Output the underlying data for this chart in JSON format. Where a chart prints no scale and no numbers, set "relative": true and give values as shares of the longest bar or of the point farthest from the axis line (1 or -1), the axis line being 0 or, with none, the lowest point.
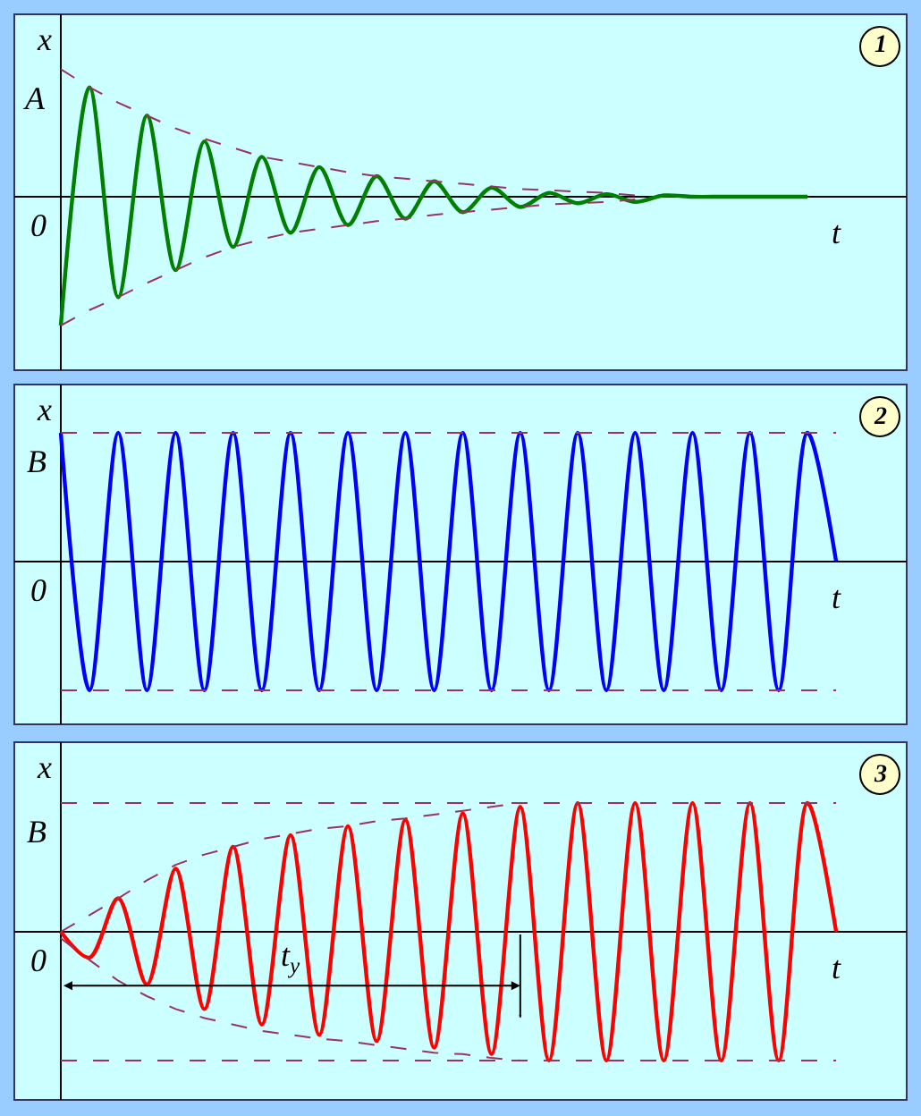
{
  "chart_data": [
    {
      "type": "line",
      "relative": true,
      "xlabel": "t",
      "ylabel": "x",
      "categories": [
        null,
        null,
        null,
        null,
        null,
        null,
        null,
        null,
        null,
        null,
        null,
        null,
        null,
        null,
        null,
        null,
        null,
        null,
        null,
        null,
        null,
        null,
        null,
        null,
        null,
        null,
        null,
        null
      ],
      "annotations": [
        "0",
        "A",
        "1"
      ],
      "series": [
        {
          "color": "#008000",
          "values": [
            -1.0,
            0.85,
            -0.78,
            0.63,
            -0.57,
            0.43,
            -0.39,
            0.31,
            -0.28,
            0.23,
            -0.22,
            0.16,
            -0.17,
            0.12,
            -0.12,
            0.07,
            -0.08,
            0.03,
            -0.05,
            0.02,
            -0.04,
            0.01,
            0,
            0,
            0,
            0,
            0,
            null
          ]
        },
        {
          "color": "#993366",
          "line_style": "dashed",
          "values": [
            0.99,
            0.85,
            0.73,
            0.63,
            0.53,
            0.45,
            0.38,
            0.31,
            0.27,
            0.23,
            0.19,
            0.16,
            0.14,
            0.12,
            0.1,
            0.08,
            0.06,
            0.05,
            0.04,
            0.03,
            0.01,
            null,
            null,
            null,
            null,
            null,
            null,
            null
          ]
        },
        {
          "color": "#993366",
          "line_style": "dashed",
          "values": [
            -1.0,
            -0.88,
            -0.78,
            -0.67,
            -0.57,
            -0.47,
            -0.39,
            -0.33,
            -0.28,
            -0.25,
            -0.22,
            -0.19,
            -0.17,
            -0.14,
            -0.12,
            -0.1,
            -0.08,
            -0.06,
            -0.05,
            -0.04,
            -0.02,
            null,
            null,
            null,
            null,
            null,
            null,
            null
          ]
        }
      ]
    },
    {
      "type": "line",
      "relative": true,
      "xlabel": "t",
      "ylabel": "x",
      "categories": [
        null,
        null,
        null,
        null,
        null,
        null,
        null,
        null,
        null,
        null,
        null,
        null,
        null,
        null,
        null,
        null,
        null,
        null,
        null,
        null,
        null,
        null,
        null,
        null,
        null,
        null,
        null,
        null
      ],
      "annotations": [
        "0",
        "2"
      ],
      "ref_lines": [
        {
          "axis": "y",
          "value": 1,
          "label": "B",
          "color": "#993366",
          "line_style": "dashed"
        },
        {
          "axis": "y",
          "value": -1,
          "color": "#993366",
          "line_style": "dashed"
        }
      ],
      "series": [
        {
          "color": "#0000ff",
          "values": [
            1,
            -1,
            1,
            -1,
            1,
            -1,
            1,
            -1,
            1,
            -1,
            1,
            -1,
            1,
            -1,
            1,
            -1,
            1,
            -1,
            1,
            -1,
            1,
            -1,
            1,
            -1,
            1,
            -1,
            1,
            0
          ]
        }
      ]
    },
    {
      "type": "line",
      "relative": true,
      "xlabel": "t",
      "ylabel": "x",
      "categories": [
        null,
        null,
        null,
        null,
        null,
        null,
        null,
        null,
        null,
        null,
        null,
        null,
        null,
        null,
        null,
        null,
        null,
        null,
        null,
        null,
        null,
        null,
        null,
        null,
        null,
        null,
        null,
        null
      ],
      "annotations": [
        "0",
        "t$_{y}$",
        "3"
      ],
      "ref_lines": [
        {
          "axis": "y",
          "value": 1,
          "label": "B",
          "color": "#993366",
          "line_style": "dashed"
        },
        {
          "axis": "y",
          "value": -1,
          "color": "#993366",
          "line_style": "dashed"
        }
      ],
      "series": [
        {
          "color": "#ff0000",
          "values": [
            0,
            -0.2,
            0.26,
            -0.41,
            0.49,
            -0.6,
            0.66,
            -0.72,
            0.75,
            -0.8,
            0.82,
            -0.85,
            0.87,
            -0.9,
            0.92,
            -0.95,
            0.97,
            -1,
            1,
            -1,
            1,
            -1,
            1,
            -1,
            1,
            -1,
            1,
            0
          ]
        },
        {
          "color": "#993366",
          "line_style": "dashed",
          "values": [
            0,
            0.13,
            0.26,
            0.4,
            0.52,
            0.6,
            0.66,
            0.72,
            0.76,
            0.8,
            0.82,
            0.86,
            0.88,
            0.91,
            0.94,
            0.97,
            1,
            null,
            null,
            null,
            null,
            null,
            null,
            null,
            null,
            null,
            null,
            null
          ]
        },
        {
          "color": "#993366",
          "line_style": "dashed",
          "values": [
            -0.05,
            -0.22,
            -0.38,
            -0.5,
            -0.6,
            -0.67,
            -0.72,
            -0.77,
            -0.8,
            -0.83,
            -0.85,
            -0.88,
            -0.91,
            -0.94,
            -0.95,
            -0.98,
            -1,
            null,
            null,
            null,
            null,
            null,
            null,
            null,
            null,
            null,
            null,
            null
          ]
        }
      ]
    }
  ]
}
